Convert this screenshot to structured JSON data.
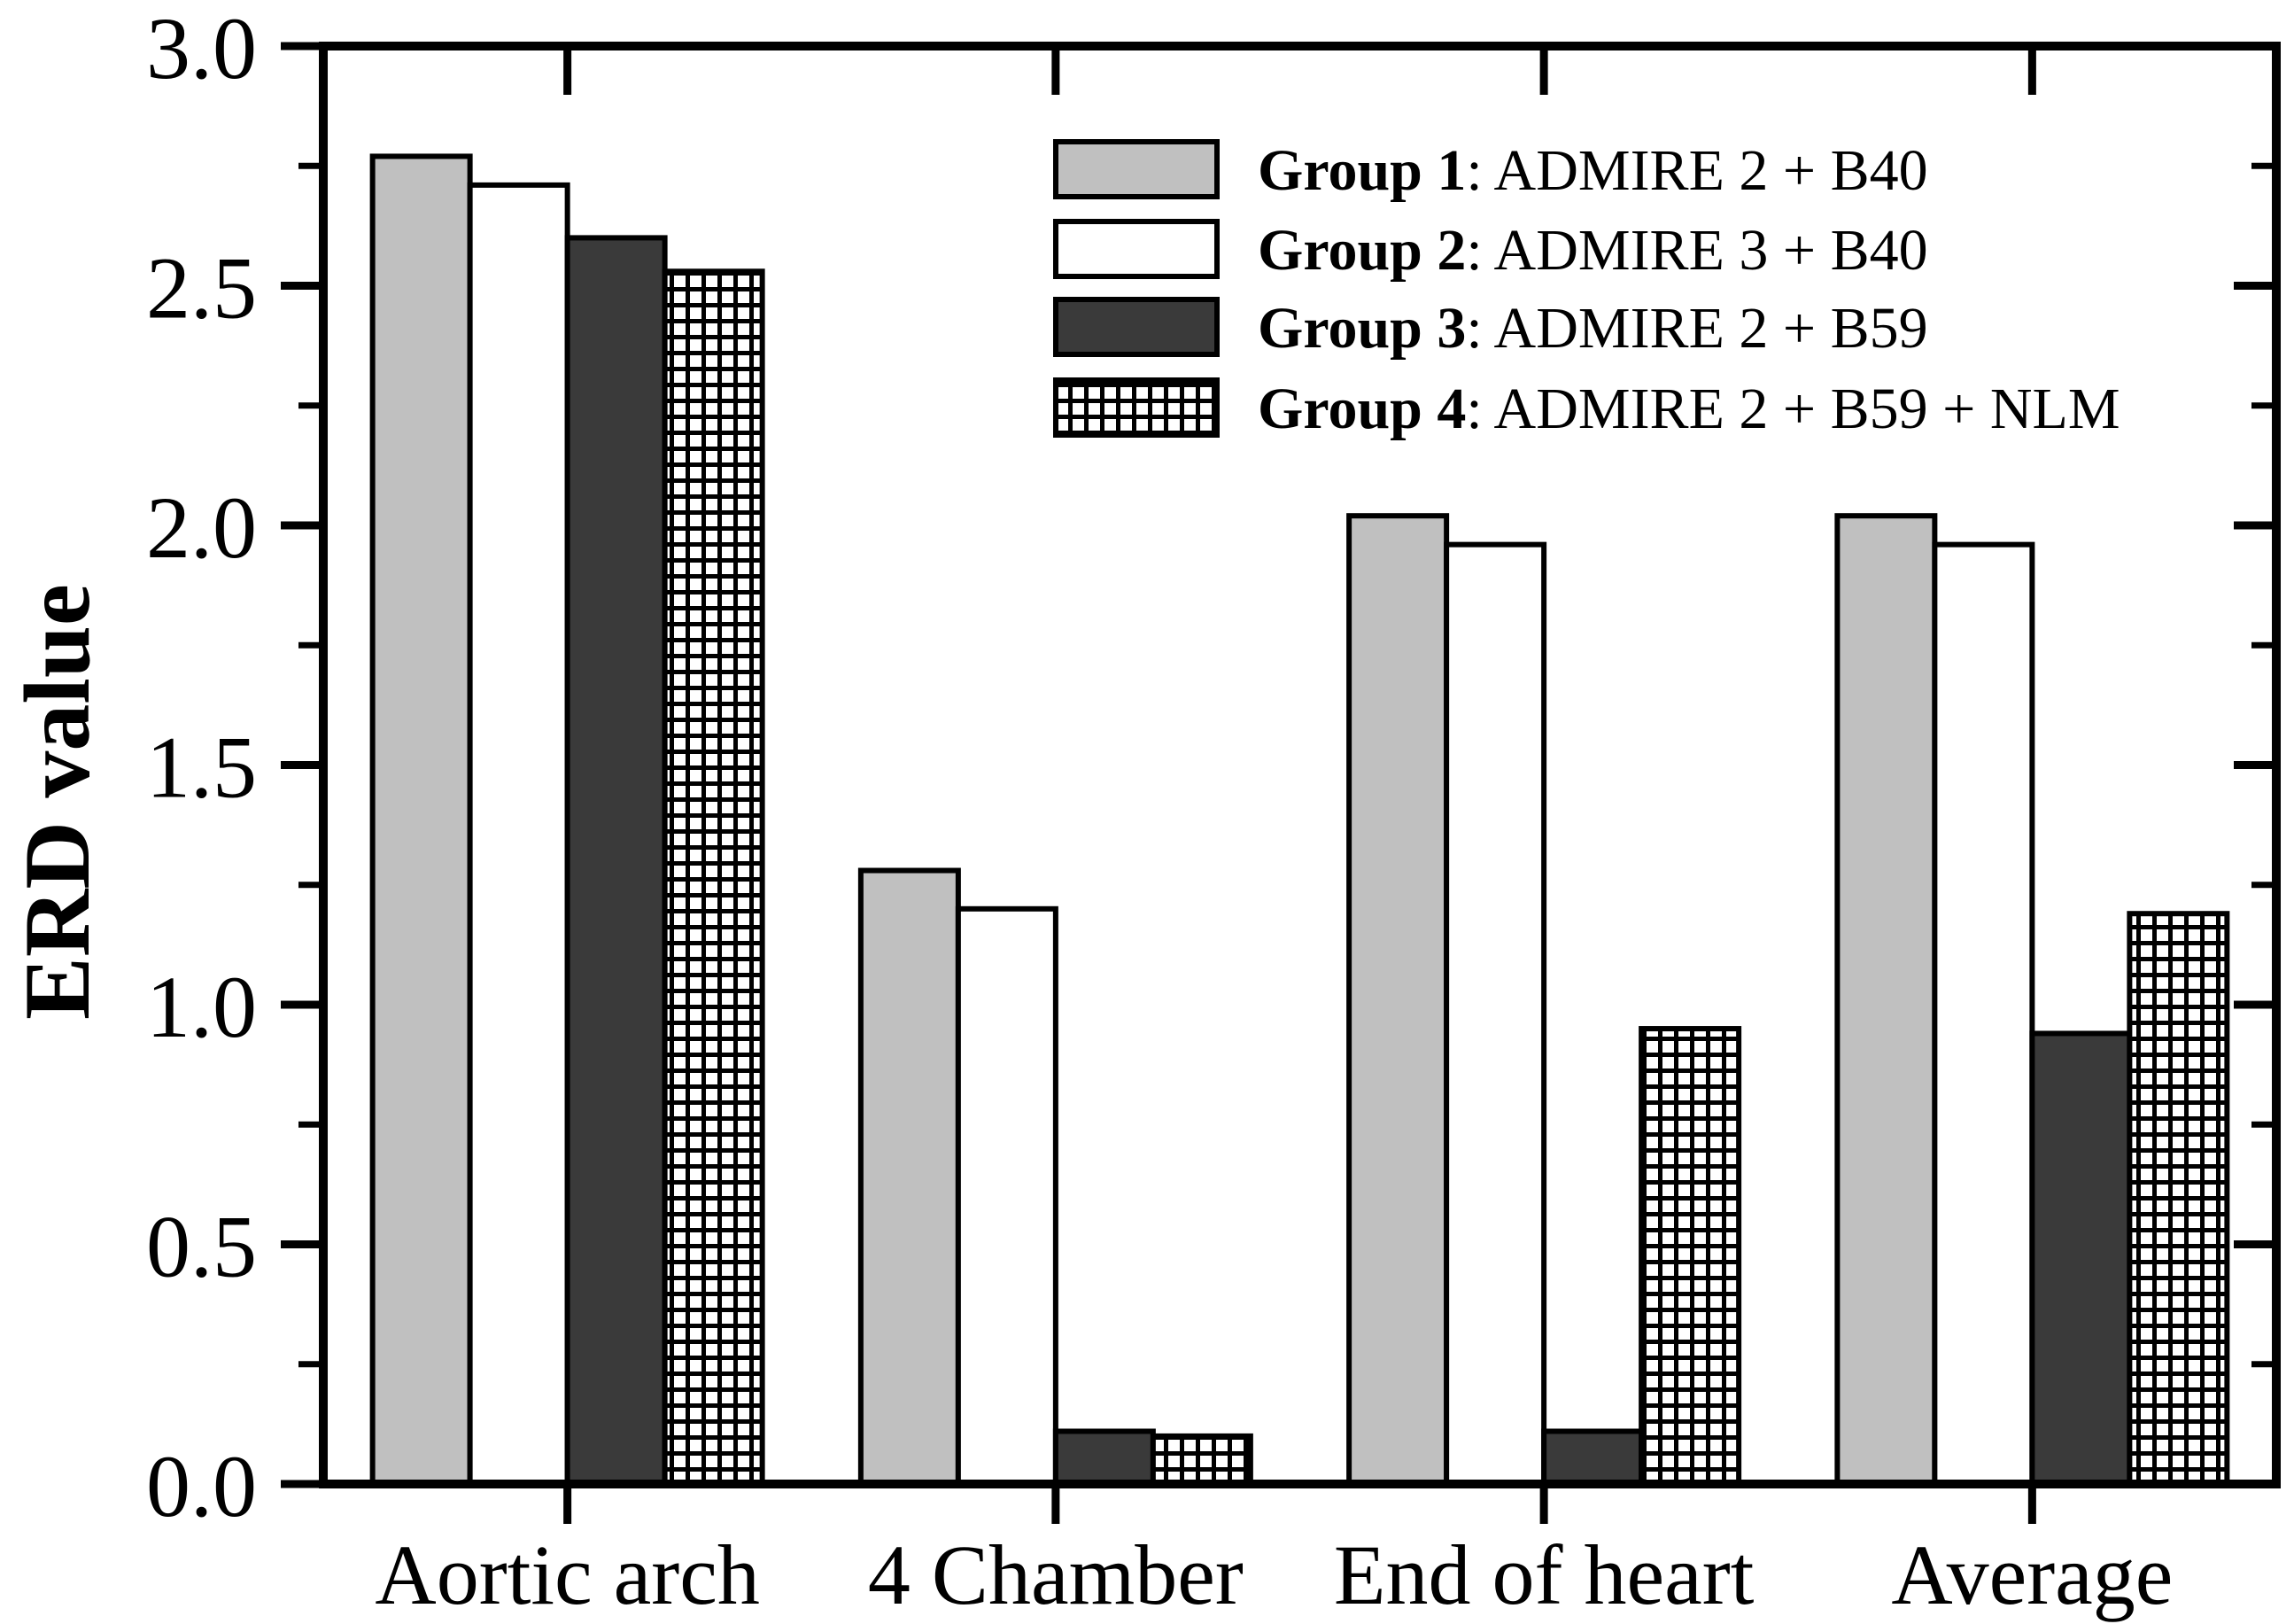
{
  "figure": {
    "background": "#ffffff",
    "axis_color": "#000000",
    "bar_edge_color": "#000000"
  },
  "chart_data": {
    "type": "bar",
    "title": "",
    "xlabel": "",
    "ylabel": "ERD value",
    "ylim": [
      0.0,
      3.0
    ],
    "ytick_major_step": 0.5,
    "ytick_minor_step": 0.25,
    "ytick_labels": [
      "0.0",
      "0.5",
      "1.0",
      "1.5",
      "2.0",
      "2.5",
      "3.0"
    ],
    "grid": false,
    "legend_position": "upper-right-inside",
    "categories": [
      "Aortic arch",
      "4 Chamber",
      "End of heart",
      "Average"
    ],
    "series": [
      {
        "name": "Group 1",
        "label_bold": "Group 1",
        "label_rest": ": ADMIRE 2 + B40",
        "fill": "#c0c0c0",
        "pattern": "solid",
        "values": [
          2.77,
          1.28,
          2.02,
          2.02
        ]
      },
      {
        "name": "Group 2",
        "label_bold": "Group 2",
        "label_rest": ": ADMIRE 3 + B40",
        "fill": "#ffffff",
        "pattern": "solid",
        "values": [
          2.71,
          1.2,
          1.96,
          1.96
        ]
      },
      {
        "name": "Group 3",
        "label_bold": "Group 3",
        "label_rest": ": ADMIRE 2 + B59",
        "fill": "#3a3a3a",
        "pattern": "solid",
        "values": [
          2.6,
          0.11,
          0.11,
          0.94
        ]
      },
      {
        "name": "Group 4",
        "label_bold": "Group 4",
        "label_rest": ": ADMIRE 2 + B59 + NLM",
        "fill": "#ffffff",
        "pattern": "grid-hatch",
        "values": [
          2.53,
          0.1,
          0.95,
          1.19
        ]
      }
    ]
  }
}
